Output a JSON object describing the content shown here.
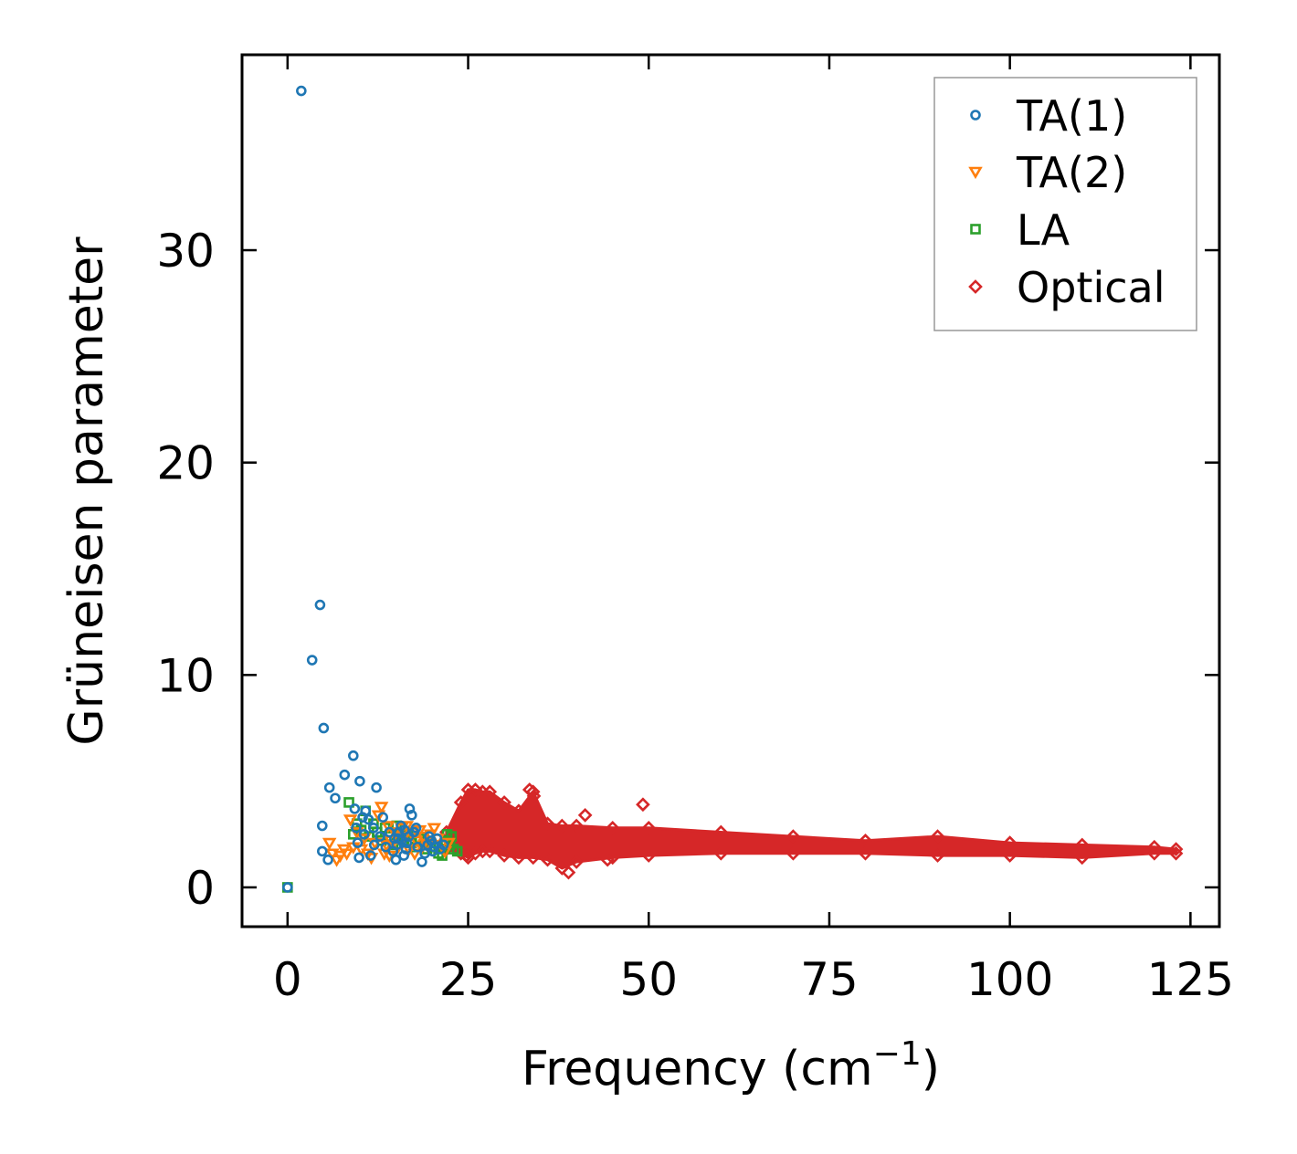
{
  "chart_data": {
    "type": "scatter",
    "title": "",
    "xlabel": "Frequency (cm",
    "xlabel_sup": "−1",
    "xlabel_end": ")",
    "ylabel": "Grüneisen parameter",
    "xlim": [
      -6.3,
      129
    ],
    "ylim": [
      -1.85,
      39.2
    ],
    "xticks": [
      0,
      25,
      50,
      75,
      100,
      125
    ],
    "yticks": [
      0,
      10,
      20,
      30
    ],
    "legend_position": "top-right",
    "series": [
      {
        "name": "TA(1)",
        "marker": "circle",
        "color": "#1f77b4",
        "points": [
          [
            0.0,
            0.0
          ],
          [
            1.9,
            37.5
          ],
          [
            3.4,
            10.7
          ],
          [
            4.5,
            13.3
          ],
          [
            5.0,
            7.5
          ],
          [
            4.8,
            2.9
          ],
          [
            4.8,
            1.7
          ],
          [
            5.6,
            1.3
          ],
          [
            5.8,
            4.7
          ],
          [
            6.6,
            4.2
          ],
          [
            7.9,
            5.3
          ],
          [
            9.1,
            6.2
          ],
          [
            9.3,
            3.7
          ],
          [
            9.7,
            2.1
          ],
          [
            9.9,
            1.4
          ],
          [
            10.0,
            5.0
          ],
          [
            10.4,
            3.3
          ],
          [
            10.6,
            2.5
          ],
          [
            11.2,
            3.2
          ],
          [
            11.5,
            1.5
          ],
          [
            11.9,
            2.8
          ],
          [
            12.3,
            4.7
          ],
          [
            12.8,
            2.4
          ],
          [
            13.2,
            3.3
          ],
          [
            13.6,
            1.9
          ],
          [
            14.1,
            2.6
          ],
          [
            14.6,
            1.7
          ],
          [
            15.0,
            1.3
          ],
          [
            15.3,
            2.3
          ],
          [
            15.7,
            2.9
          ],
          [
            16.1,
            1.5
          ],
          [
            16.5,
            2.1
          ],
          [
            16.9,
            3.7
          ],
          [
            17.2,
            3.4
          ],
          [
            17.5,
            2.6
          ],
          [
            18.0,
            1.9
          ],
          [
            18.6,
            1.2
          ],
          [
            19.0,
            1.6
          ],
          [
            19.4,
            2.0
          ],
          [
            19.9,
            2.2
          ],
          [
            20.3,
            1.9
          ],
          [
            20.7,
            2.3
          ],
          [
            21.1,
            1.8
          ],
          [
            21.6,
            2.0
          ],
          [
            15.4,
            2.6
          ],
          [
            15.8,
            2.2
          ],
          [
            16.2,
            2.7
          ],
          [
            16.8,
            2.4
          ],
          [
            15.1,
            2.0
          ],
          [
            16.4,
            1.8
          ],
          [
            19.6,
            2.4
          ],
          [
            20.1,
            1.7
          ],
          [
            17.8,
            2.8
          ],
          [
            14.8,
            2.3
          ],
          [
            12.0,
            2.0
          ],
          [
            10.8,
            3.6
          ],
          [
            9.5,
            2.8
          ]
        ]
      },
      {
        "name": "TA(2)",
        "marker": "triangle-down",
        "color": "#ff7f0e",
        "points": [
          [
            5.8,
            2.1
          ],
          [
            6.2,
            1.6
          ],
          [
            6.8,
            1.3
          ],
          [
            7.3,
            1.5
          ],
          [
            7.8,
            1.8
          ],
          [
            8.2,
            1.6
          ],
          [
            8.7,
            3.2
          ],
          [
            9.1,
            1.9
          ],
          [
            9.6,
            2.6
          ],
          [
            10.2,
            1.8
          ],
          [
            10.6,
            2.3
          ],
          [
            11.1,
            1.6
          ],
          [
            11.6,
            1.4
          ],
          [
            12.1,
            2.1
          ],
          [
            12.6,
            3.4
          ],
          [
            13.0,
            3.8
          ],
          [
            13.4,
            1.6
          ],
          [
            13.9,
            2.9
          ],
          [
            14.3,
            2.2
          ],
          [
            14.8,
            2.6
          ],
          [
            15.3,
            1.9
          ],
          [
            15.8,
            2.8
          ],
          [
            16.2,
            2.4
          ],
          [
            16.8,
            1.8
          ],
          [
            17.3,
            2.6
          ],
          [
            17.8,
            2.2
          ],
          [
            18.3,
            2.7
          ],
          [
            18.8,
            2.4
          ],
          [
            19.3,
            2.0
          ],
          [
            19.8,
            2.5
          ],
          [
            20.3,
            2.8
          ],
          [
            20.8,
            2.3
          ],
          [
            21.3,
            2.0
          ],
          [
            21.8,
            1.7
          ],
          [
            22.3,
            2.1
          ],
          [
            13.7,
            2.0
          ],
          [
            14.1,
            1.5
          ],
          [
            16.5,
            2.9
          ],
          [
            17.6,
            1.6
          ],
          [
            18.6,
            1.9
          ]
        ]
      },
      {
        "name": "LA",
        "marker": "square",
        "color": "#2ca02c",
        "points": [
          [
            0.0,
            0.0
          ],
          [
            8.5,
            4.0
          ],
          [
            9.1,
            2.5
          ],
          [
            9.6,
            3.0
          ],
          [
            10.2,
            2.7
          ],
          [
            10.8,
            3.6
          ],
          [
            11.3,
            2.4
          ],
          [
            11.9,
            3.0
          ],
          [
            12.4,
            2.6
          ],
          [
            13.0,
            2.2
          ],
          [
            13.5,
            2.8
          ],
          [
            14.0,
            2.4
          ],
          [
            14.6,
            2.0
          ],
          [
            15.1,
            2.9
          ],
          [
            15.6,
            2.5
          ],
          [
            16.1,
            2.2
          ],
          [
            16.7,
            2.6
          ],
          [
            17.2,
            2.1
          ],
          [
            17.7,
            1.9
          ],
          [
            18.2,
            2.3
          ],
          [
            18.8,
            2.0
          ],
          [
            19.3,
            1.8
          ],
          [
            19.8,
            2.1
          ],
          [
            20.4,
            1.9
          ],
          [
            20.9,
            1.6
          ],
          [
            21.4,
            1.5
          ],
          [
            21.9,
            2.2
          ],
          [
            22.5,
            2.0
          ],
          [
            23.0,
            1.8
          ],
          [
            23.5,
            1.7
          ],
          [
            22.1,
            2.5
          ],
          [
            22.7,
            2.4
          ]
        ]
      },
      {
        "name": "Optical",
        "marker": "diamond",
        "color": "#d62728",
        "envelope": {
          "x": [
            22,
            24,
            25,
            26,
            27,
            28,
            30,
            32,
            34,
            36,
            38,
            40,
            45,
            50,
            60,
            70,
            80,
            90,
            100,
            110,
            120,
            123
          ],
          "upper": [
            2.6,
            4.0,
            4.6,
            4.6,
            4.5,
            4.5,
            4.0,
            3.6,
            4.5,
            3.0,
            2.9,
            2.9,
            2.8,
            2.8,
            2.6,
            2.4,
            2.2,
            2.4,
            2.1,
            2.0,
            1.9,
            1.8
          ],
          "lower": [
            1.8,
            1.6,
            1.4,
            1.6,
            1.7,
            1.7,
            1.5,
            1.4,
            1.4,
            1.3,
            0.9,
            1.2,
            1.4,
            1.5,
            1.6,
            1.6,
            1.6,
            1.5,
            1.5,
            1.4,
            1.6,
            1.6
          ]
        },
        "outliers": [
          [
            34.1,
            4.3
          ],
          [
            38.9,
            0.7
          ],
          [
            41.2,
            3.4
          ],
          [
            49.2,
            3.9
          ],
          [
            24.8,
            1.5
          ],
          [
            44.3,
            1.3
          ],
          [
            33.5,
            4.6
          ]
        ]
      }
    ]
  }
}
